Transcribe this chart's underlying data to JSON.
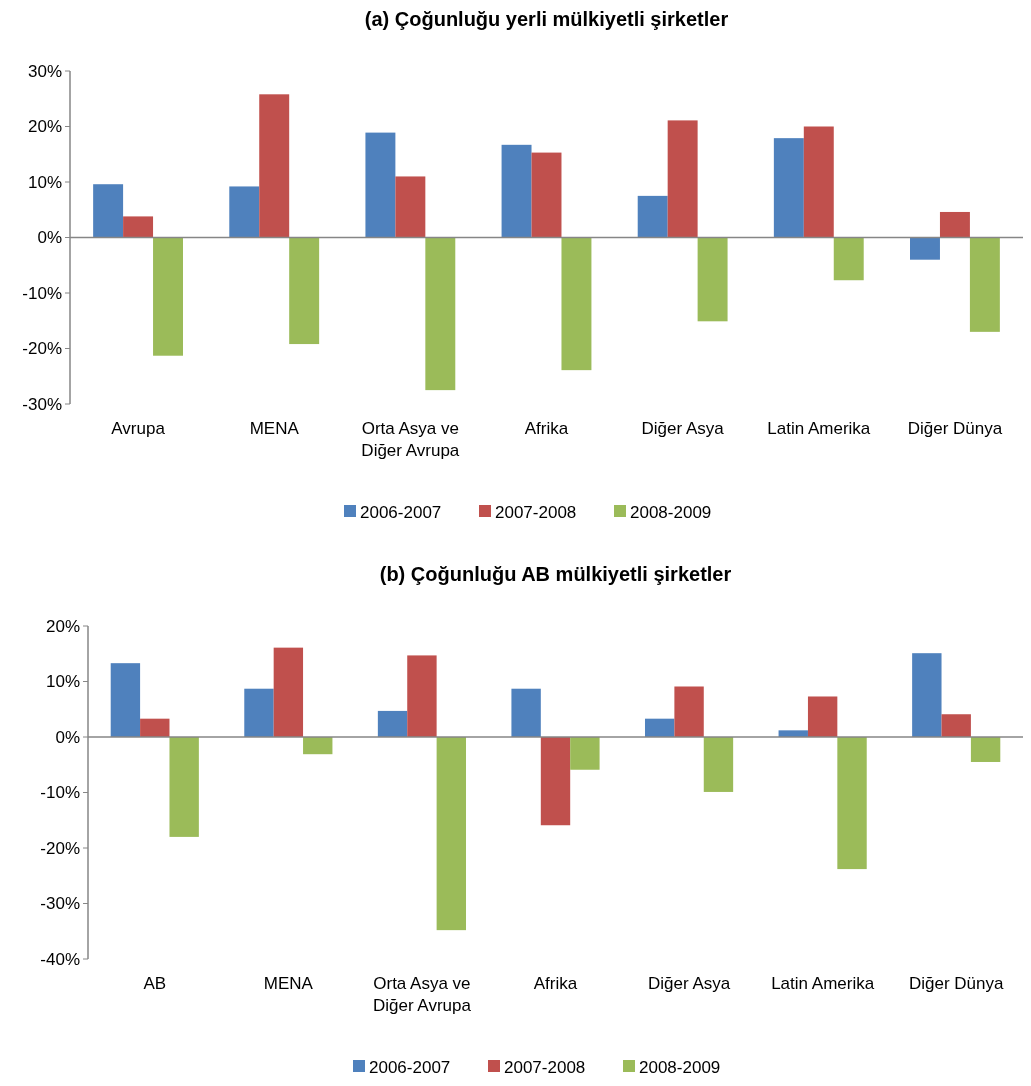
{
  "chart_data": [
    {
      "type": "bar",
      "title": "(a) Çoğunluğu yerli mülkiyetli şirketler",
      "categories": [
        "Avrupa",
        "MENA",
        "Orta Asya ve Diğer Avrupa",
        "Afrika",
        "Diğer Asya",
        "Latin Amerika",
        "Diğer Dünya"
      ],
      "series": [
        {
          "name": "2006-2007",
          "color": "#4f81bd",
          "values": [
            9.6,
            9.2,
            18.9,
            16.7,
            7.5,
            17.9,
            -4.0
          ]
        },
        {
          "name": "2007-2008",
          "color": "#c0504d",
          "values": [
            3.8,
            25.8,
            11.0,
            15.3,
            21.1,
            20.0,
            4.6
          ]
        },
        {
          "name": "2008-2009",
          "color": "#9bbb59",
          "values": [
            -21.3,
            -19.2,
            -27.5,
            -23.9,
            -15.1,
            -7.7,
            -17.0
          ]
        }
      ],
      "ylim": [
        -30,
        30
      ],
      "yticks": [
        {
          "value": -30,
          "label": "-30%"
        },
        {
          "value": -20,
          "label": "-20%"
        },
        {
          "value": -10,
          "label": "-10%"
        },
        {
          "value": 0,
          "label": "0%"
        },
        {
          "value": 10,
          "label": "10%"
        },
        {
          "value": 20,
          "label": "20%"
        },
        {
          "value": 30,
          "label": "30%"
        }
      ],
      "legend": "bottom"
    },
    {
      "type": "bar",
      "title": "(b) Çoğunluğu AB mülkiyetli şirketler",
      "categories": [
        "AB",
        "MENA",
        "Orta Asya ve Diğer Avrupa",
        "Afrika",
        "Diğer Asya",
        "Latin Amerika",
        "Diğer Dünya"
      ],
      "series": [
        {
          "name": "2006-2007",
          "color": "#4f81bd",
          "values": [
            13.3,
            8.7,
            4.7,
            8.7,
            3.3,
            1.2,
            15.1
          ]
        },
        {
          "name": "2007-2008",
          "color": "#c0504d",
          "values": [
            3.3,
            16.1,
            14.7,
            -15.9,
            9.1,
            7.3,
            4.1
          ]
        },
        {
          "name": "2008-2009",
          "color": "#9bbb59",
          "values": [
            -18.0,
            -3.1,
            -34.8,
            -5.9,
            -9.9,
            -23.8,
            -4.5
          ]
        }
      ],
      "ylim": [
        -40,
        20
      ],
      "yticks": [
        {
          "value": -40,
          "label": "-40%"
        },
        {
          "value": -30,
          "label": "-30%"
        },
        {
          "value": -20,
          "label": "-20%"
        },
        {
          "value": -10,
          "label": "-10%"
        },
        {
          "value": 0,
          "label": "0%"
        },
        {
          "value": 10,
          "label": "10%"
        },
        {
          "value": 20,
          "label": "20%"
        }
      ],
      "legend": "bottom"
    }
  ]
}
